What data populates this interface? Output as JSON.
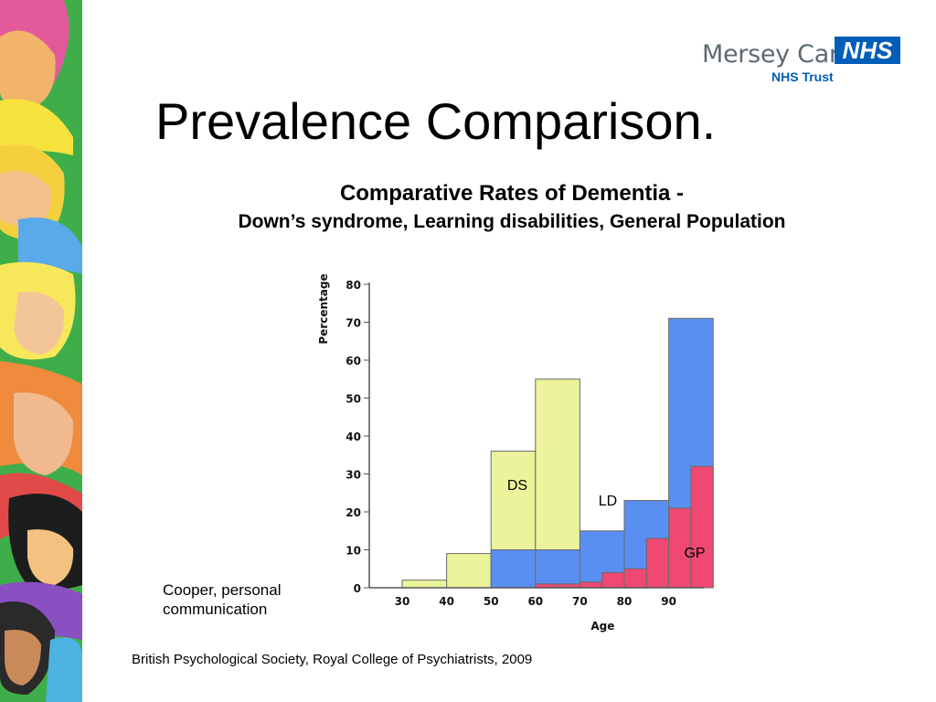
{
  "slide": {
    "title": "Prevalence Comparison.",
    "logo": {
      "name": "Mersey Care",
      "badge": "NHS",
      "subtitle": "NHS Trust"
    },
    "note": "Cooper, personal communication",
    "footer": "British Psychological Society, Royal College of Psychiatrists, 2009",
    "side_art": "illustrated-faces-border"
  },
  "chart_data": {
    "type": "bar",
    "title": "Comparative Rates of Dementia -",
    "subtitle": "Down’s syndrome, Learning disabilities, General Population",
    "xlabel": "Age",
    "ylabel": "Percentage",
    "ylim": [
      0,
      80
    ],
    "yticks": [
      0,
      10,
      20,
      30,
      40,
      50,
      60,
      70,
      80
    ],
    "xticks": [
      30,
      40,
      50,
      60,
      70,
      80,
      90
    ],
    "grid": false,
    "series": [
      {
        "name": "DS",
        "color": "#ebf49a",
        "bins": [
          {
            "x0": 30,
            "x1": 40,
            "value": 2
          },
          {
            "x0": 40,
            "x1": 50,
            "value": 9
          },
          {
            "x0": 50,
            "x1": 60,
            "value": 36
          },
          {
            "x0": 60,
            "x1": 70,
            "value": 55
          }
        ]
      },
      {
        "name": "LD",
        "color": "#5a8ff2",
        "bins": [
          {
            "x0": 50,
            "x1": 60,
            "value": 10
          },
          {
            "x0": 60,
            "x1": 70,
            "value": 10
          },
          {
            "x0": 70,
            "x1": 80,
            "value": 15
          },
          {
            "x0": 80,
            "x1": 90,
            "value": 23
          },
          {
            "x0": 90,
            "x1": 100,
            "value": 71
          }
        ]
      },
      {
        "name": "GP",
        "color": "#ef4872",
        "bins": [
          {
            "x0": 60,
            "x1": 65,
            "value": 1
          },
          {
            "x0": 65,
            "x1": 70,
            "value": 1
          },
          {
            "x0": 70,
            "x1": 75,
            "value": 1.5
          },
          {
            "x0": 75,
            "x1": 80,
            "value": 4
          },
          {
            "x0": 80,
            "x1": 85,
            "value": 5
          },
          {
            "x0": 85,
            "x1": 90,
            "value": 13
          },
          {
            "x0": 90,
            "x1": 95,
            "value": 21
          },
          {
            "x0": 95,
            "x1": 100,
            "value": 32
          }
        ]
      }
    ]
  }
}
